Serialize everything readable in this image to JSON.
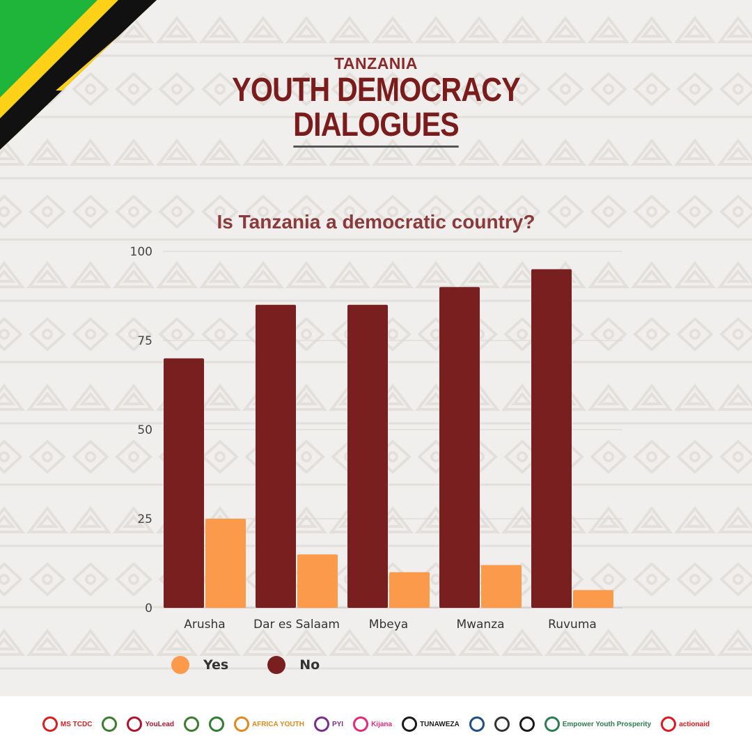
{
  "header": {
    "eyebrow": "TANZANIA",
    "title_line1": "YOUTH DEMOCRACY",
    "title_line2": "DIALOGUES"
  },
  "chart_data": {
    "type": "bar",
    "title": "Is Tanzania a democratic country?",
    "categories": [
      "Arusha",
      "Dar es Salaam",
      "Mbeya",
      "Mwanza",
      "Ruvuma"
    ],
    "series": [
      {
        "name": "No",
        "color": "#7a1f1f",
        "values": [
          70,
          85,
          85,
          90,
          95
        ]
      },
      {
        "name": "Yes",
        "color": "#fb9a4b",
        "values": [
          25,
          15,
          10,
          12,
          5
        ]
      }
    ],
    "yticks": [
      "0",
      "25",
      "50",
      "75",
      "100"
    ],
    "ylim": [
      0,
      100
    ],
    "grid": true,
    "legend": "bottom-left"
  },
  "legend": {
    "yes_label": "Yes",
    "no_label": "No",
    "yes_color": "#fb9a4b",
    "no_color": "#7a1f1f"
  },
  "footer": {
    "logos": [
      {
        "text": "MS TCDC",
        "icon": "ms-tcdc-logo",
        "color": "#d81e1e"
      },
      {
        "text": "",
        "icon": "crest-logo",
        "color": "#3a7d2c"
      },
      {
        "text": "YouLead",
        "icon": "youlead-logo",
        "color": "#b3122a"
      },
      {
        "text": "",
        "icon": "crest-logo-2",
        "color": "#3a7d2c"
      },
      {
        "text": "",
        "icon": "wreath-logo",
        "color": "#2f7d32"
      },
      {
        "text": "AFRICA YOUTH",
        "icon": "africa-youth-logo",
        "color": "#e08a1a"
      },
      {
        "text": "PYI",
        "icon": "pyi-logo",
        "color": "#7b2d8e"
      },
      {
        "text": "Kijana",
        "icon": "kijana-logo",
        "color": "#e6287a"
      },
      {
        "text": "TUNAWEZA",
        "icon": "tunaweza-logo",
        "color": "#1a1a1a"
      },
      {
        "text": "",
        "icon": "voice-of-youth-logo",
        "color": "#1f4e8c"
      },
      {
        "text": "",
        "icon": "map-logo",
        "color": "#333333"
      },
      {
        "text": "",
        "icon": "seal-logo",
        "color": "#1a1a1a"
      },
      {
        "text": "Empower Youth Prosperity",
        "icon": "empower-logo",
        "color": "#2a7d4f"
      },
      {
        "text": "actionaid",
        "icon": "actionaid-logo",
        "color": "#e3161d"
      }
    ]
  }
}
